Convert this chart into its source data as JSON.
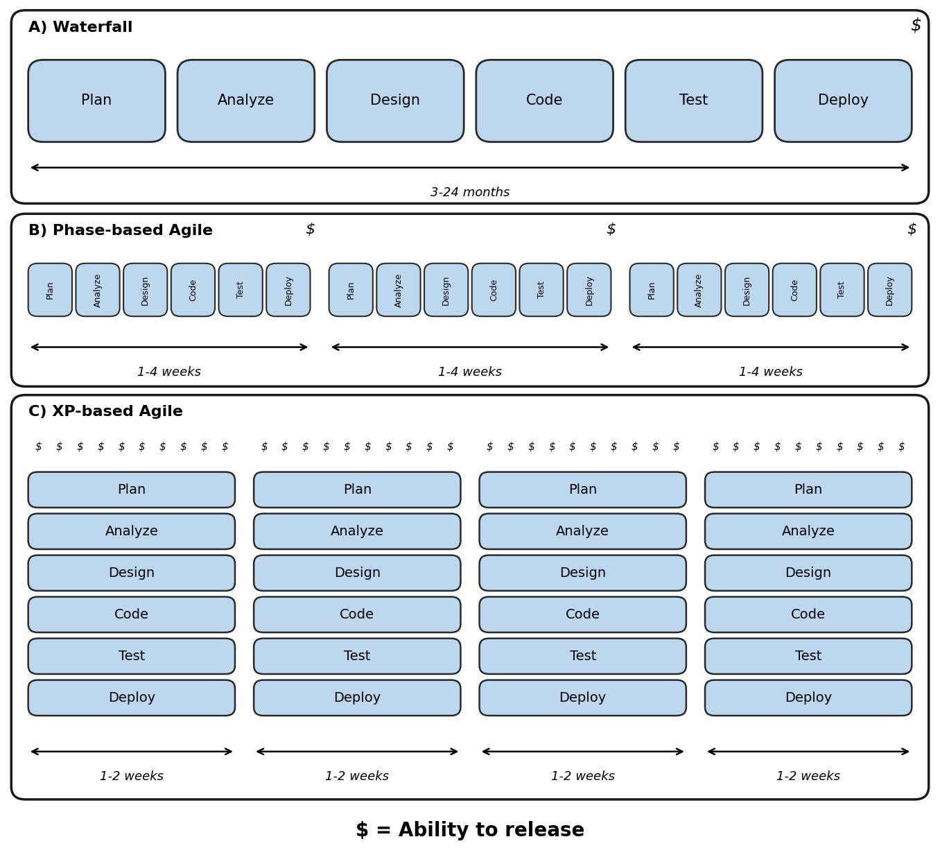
{
  "bg_color": "#ffffff",
  "box_fill": "#bdd7ee",
  "box_edge": "#2a2a2a",
  "border_color": "#1a1a1a",
  "phases": [
    "Plan",
    "Analyze",
    "Design",
    "Code",
    "Test",
    "Deploy"
  ],
  "section_a": {
    "title": "A) Waterfall",
    "duration_label": "3-24 months",
    "n_cycles": 1
  },
  "section_b": {
    "title": "B) Phase-based Agile",
    "duration_label": "1-4 weeks",
    "n_cycles": 3
  },
  "section_c": {
    "title": "C) XP-based Agile",
    "duration_label": "1-2 weeks",
    "n_cycles": 4,
    "dollars_per_cycle": 10
  },
  "footer": "$ = Ability to release",
  "title_fontsize": 16,
  "phase_fontsize_a": 15,
  "phase_fontsize_b": 9,
  "phase_fontsize_c": 14,
  "arrow_fontsize": 13,
  "dollar_fontsize_a": 18,
  "dollar_fontsize_b": 16,
  "dollar_fontsize_c": 11,
  "footer_fontsize": 20
}
